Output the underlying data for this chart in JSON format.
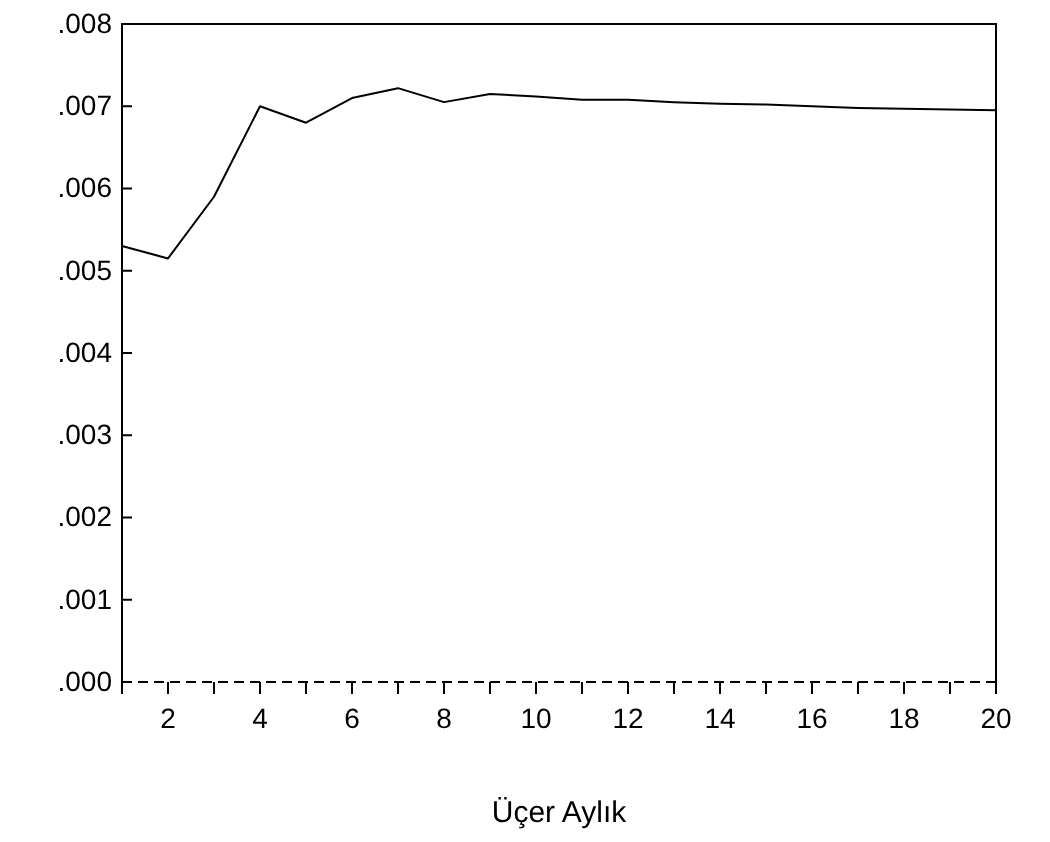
{
  "chart_data": {
    "type": "line",
    "xlabel": "Üçer Aylık",
    "x": [
      1,
      2,
      3,
      4,
      5,
      6,
      7,
      8,
      9,
      10,
      11,
      12,
      13,
      14,
      15,
      16,
      17,
      18,
      19,
      20
    ],
    "series": [
      {
        "color": "#000000",
        "values": [
          0.0053,
          0.00515,
          0.0059,
          0.007,
          0.0068,
          0.0071,
          0.00722,
          0.00705,
          0.00715,
          0.00712,
          0.00708,
          0.00708,
          0.00705,
          0.00703,
          0.00702,
          0.007,
          0.00698,
          0.00697,
          0.00696,
          0.00695
        ]
      }
    ],
    "xlim": [
      1,
      20
    ],
    "ylim": [
      0,
      0.008
    ],
    "xticks": [
      {
        "value": 1,
        "label": null
      },
      2,
      {
        "value": 3,
        "label": null
      },
      4,
      {
        "value": 5,
        "label": null
      },
      6,
      {
        "value": 7,
        "label": null
      },
      8,
      {
        "value": 9,
        "label": null
      },
      10,
      {
        "value": 11,
        "label": null
      },
      12,
      {
        "value": 13,
        "label": null
      },
      14,
      {
        "value": 15,
        "label": null
      },
      16,
      {
        "value": 17,
        "label": null
      },
      18,
      {
        "value": 19,
        "label": null
      },
      20
    ],
    "yticks": [
      {
        "value": 0,
        "label": ".000"
      },
      {
        "value": 0.001,
        "label": ".001"
      },
      {
        "value": 0.002,
        "label": ".002"
      },
      {
        "value": 0.003,
        "label": ".003"
      },
      {
        "value": 0.004,
        "label": ".004"
      },
      {
        "value": 0.005,
        "label": ".005"
      },
      {
        "value": 0.006,
        "label": ".006"
      },
      {
        "value": 0.007,
        "label": ".007"
      },
      {
        "value": 0.008,
        "label": ".008"
      }
    ],
    "ref_lines": [
      {
        "axis": "y",
        "value": 0,
        "color": "#000000",
        "line_style": "dashed"
      }
    ],
    "grid": false
  }
}
